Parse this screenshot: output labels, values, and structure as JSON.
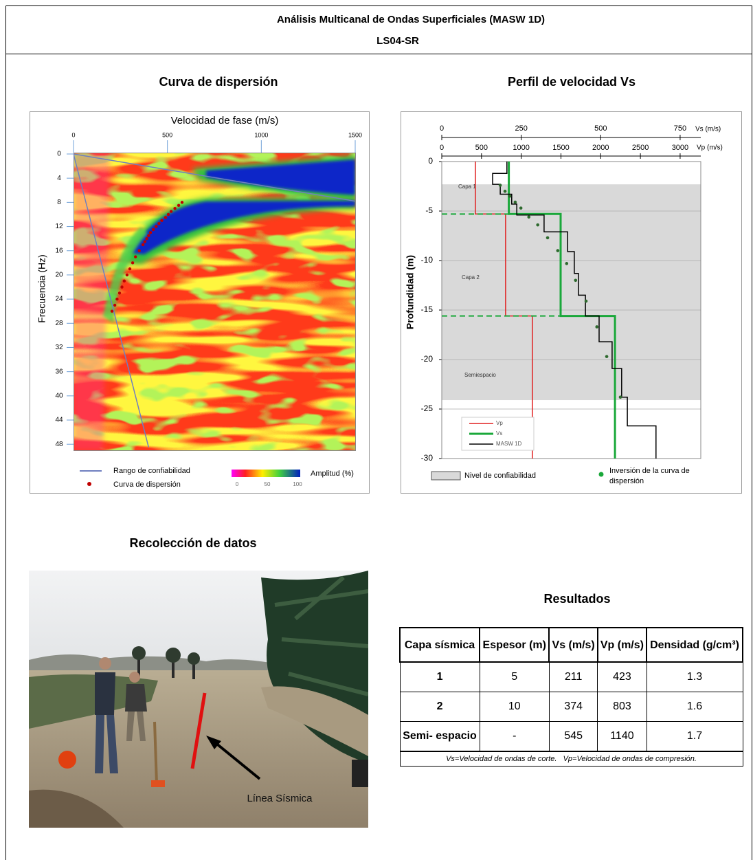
{
  "header": {
    "title": "Análisis Multicanal de Ondas Superficiales (MASW 1D)",
    "subtitle": "LS04-SR"
  },
  "chart_data": [
    {
      "type": "heatmap",
      "title": "Curva de dispersión",
      "x_label": "Velocidad de fase (m/s)",
      "y_label": "Frecuencia (Hz)",
      "xlim": [
        0,
        1500
      ],
      "xticks": [
        0,
        500,
        1000,
        1500
      ],
      "ylim": [
        0,
        49
      ],
      "yticks": [
        0,
        4,
        8,
        12,
        16,
        20,
        24,
        28,
        32,
        36,
        40,
        44,
        48
      ],
      "y_inverted": true,
      "series": [
        {
          "name": "Rango de confiabilidad",
          "color": "#6f7fbf",
          "x": [
            0,
            1500,
            null,
            0,
            400
          ],
          "y": [
            0,
            7.8,
            null,
            0,
            48.5
          ]
        },
        {
          "name": "Curva de dispersión",
          "color": "#c00000",
          "x": [
            578,
            560,
            540,
            520,
            505,
            490,
            470,
            455,
            440,
            425,
            410,
            400,
            390,
            380,
            370,
            350,
            330,
            315,
            300,
            285,
            270,
            258,
            245,
            232,
            220,
            205
          ],
          "y": [
            8,
            8.5,
            9,
            9.5,
            10,
            10.5,
            11,
            11.5,
            12,
            12.5,
            13,
            13.5,
            14,
            14.5,
            15,
            16,
            17,
            18,
            19,
            20,
            21,
            22,
            23,
            24,
            25,
            26
          ]
        }
      ],
      "colorbar": {
        "label": "Amplitud (%)",
        "ticks": [
          0,
          50,
          100
        ]
      }
    },
    {
      "type": "line",
      "title": "Perfil de velocidad Vs",
      "y_label": "Profundidad (m)",
      "x_label": "Vs (m/s)",
      "xlim": [
        0,
        815
      ],
      "xticks": [
        0,
        250,
        500,
        750
      ],
      "x2_label": "Vp (m/s)",
      "x2lim": [
        0,
        3260
      ],
      "x2ticks": [
        0,
        500,
        1000,
        1500,
        2000,
        2500,
        3000
      ],
      "ylim": [
        -30,
        0
      ],
      "yticks": [
        0,
        -5,
        -10,
        -15,
        -20,
        -25,
        -30
      ],
      "grid": true,
      "reliability": {
        "name": "Nivel de confiabilidad",
        "color": "#d9d9d9",
        "y": [
          -2.3,
          -24.1
        ]
      },
      "annotations": [
        "Capa 1",
        "Capa 2",
        "Semiespacio"
      ],
      "series": [
        {
          "name": "Vp",
          "color": "#e02020",
          "axis": "x2",
          "x": [
            423,
            423,
            803,
            803,
            1140,
            1140
          ],
          "y": [
            0,
            -5.3,
            -5.3,
            -15.6,
            -15.6,
            -30
          ]
        },
        {
          "name": "Vs",
          "color": "#1aa83a",
          "x": [
            211,
            211,
            374,
            374,
            545,
            545
          ],
          "y": [
            0,
            -5.3,
            -5.3,
            -15.6,
            -15.6,
            -30
          ]
        },
        {
          "name": "MASW 1D",
          "color": "#000000",
          "x": [
            205,
            205,
            160,
            160,
            184,
            184,
            220,
            220,
            236,
            236,
            322,
            322,
            396,
            396,
            417,
            417,
            430,
            430,
            452,
            452,
            495,
            495,
            536,
            536,
            566,
            566,
            584,
            584,
            674,
            674
          ],
          "y": [
            0,
            -1.2,
            -1.2,
            -2.3,
            -2.3,
            -3.3,
            -3.3,
            -4.3,
            -4.3,
            -5.4,
            -5.4,
            -7.1,
            -7.1,
            -9.1,
            -9.1,
            -11.3,
            -11.3,
            -13.5,
            -13.5,
            -15.6,
            -15.6,
            -18.2,
            -18.2,
            -20.9,
            -20.9,
            -23.8,
            -23.8,
            -26.7,
            -26.7,
            -30
          ]
        },
        {
          "name": "Inversión de la curva de dispersión",
          "color": "#2e6a2e",
          "type": "scatter",
          "x": [
            184,
            199,
            214,
            231,
            249,
            274,
            302,
            333,
            365,
            393,
            421,
            454,
            488,
            519,
            562
          ],
          "y": [
            -2.4,
            -3.0,
            -3.5,
            -4.1,
            -4.7,
            -5.6,
            -6.4,
            -7.7,
            -9.0,
            -10.3,
            -12.0,
            -14.1,
            -16.7,
            -19.7,
            -23.8
          ]
        }
      ]
    }
  ],
  "photo": {
    "title": "Recolección de datos",
    "annotation": "Línea Sísmica"
  },
  "table": {
    "title": "Resultados",
    "header": [
      "Capa sísmica",
      "Espesor (m)",
      "Vs (m/s)",
      "Vp (m/s)",
      "Densidad (g/cm³)"
    ],
    "rows": [
      [
        1,
        5,
        211,
        423,
        1.3
      ],
      [
        2,
        10,
        374,
        803,
        1.6
      ],
      [
        "Semi- espacio",
        "-",
        545,
        1140,
        1.7
      ]
    ],
    "note": "Vs=Velocidad de ondas de corte.   Vp=Velocidad de ondas de compresión."
  }
}
